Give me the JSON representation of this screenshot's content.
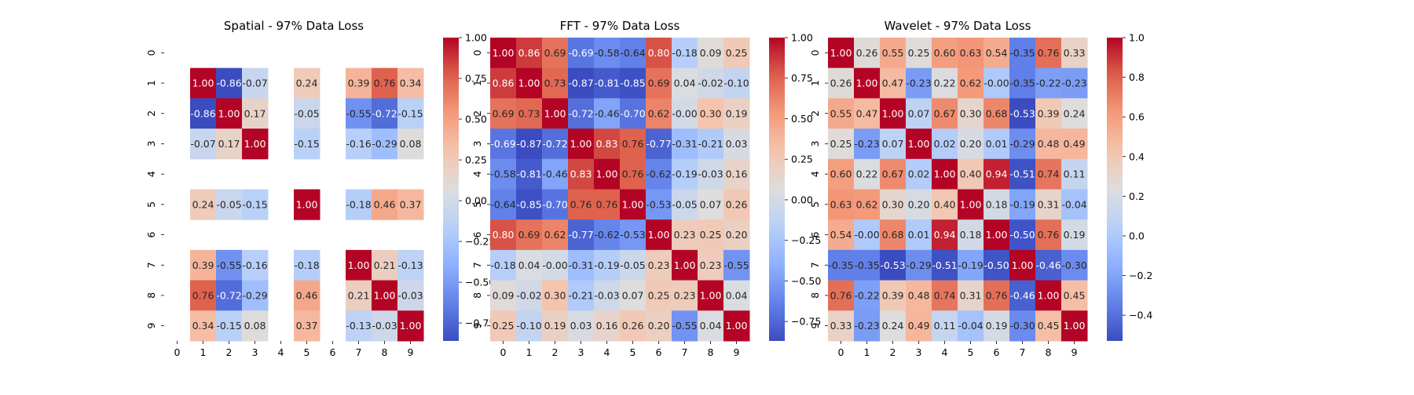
{
  "chart_data": [
    {
      "type": "heatmap",
      "title": "Spatial - 97% Data Loss",
      "x_categories": [
        "0",
        "1",
        "2",
        "3",
        "4",
        "5",
        "6",
        "7",
        "8",
        "9"
      ],
      "y_categories": [
        "0",
        "1",
        "2",
        "3",
        "4",
        "5",
        "6",
        "7",
        "8",
        "9"
      ],
      "values": [
        [
          null,
          null,
          null,
          null,
          null,
          null,
          null,
          null,
          null,
          null
        ],
        [
          null,
          1.0,
          -0.86,
          -0.07,
          null,
          0.24,
          null,
          0.39,
          0.76,
          0.34
        ],
        [
          null,
          -0.86,
          1.0,
          0.17,
          null,
          -0.05,
          null,
          -0.55,
          -0.72,
          -0.15
        ],
        [
          null,
          -0.07,
          0.17,
          1.0,
          null,
          -0.15,
          null,
          -0.16,
          -0.29,
          0.08
        ],
        [
          null,
          null,
          null,
          null,
          null,
          null,
          null,
          null,
          null,
          null
        ],
        [
          null,
          0.24,
          -0.05,
          -0.15,
          null,
          1.0,
          null,
          -0.18,
          0.46,
          0.37
        ],
        [
          null,
          null,
          null,
          null,
          null,
          null,
          null,
          null,
          null,
          null
        ],
        [
          null,
          0.39,
          -0.55,
          -0.16,
          null,
          -0.18,
          null,
          1.0,
          0.21,
          -0.13
        ],
        [
          null,
          0.76,
          -0.72,
          -0.29,
          null,
          0.46,
          null,
          0.21,
          1.0,
          -0.03
        ],
        [
          null,
          0.34,
          -0.15,
          0.08,
          null,
          0.37,
          null,
          -0.13,
          -0.03,
          1.0
        ]
      ],
      "vmin": -0.86,
      "vmax": 1.0,
      "colorbar_ticks": [
        -0.75,
        -0.5,
        -0.25,
        0.0,
        0.25,
        0.5,
        0.75,
        1.0
      ],
      "colorbar_tick_labels": [
        "−0.75",
        "−0.50",
        "−0.25",
        "0.00",
        "0.25",
        "0.50",
        "0.75",
        "1.00"
      ],
      "colormap": "coolwarm"
    },
    {
      "type": "heatmap",
      "title": "FFT - 97% Data Loss",
      "x_categories": [
        "0",
        "1",
        "2",
        "3",
        "4",
        "5",
        "6",
        "7",
        "8",
        "9"
      ],
      "y_categories": [
        "0",
        "1",
        "2",
        "3",
        "4",
        "5",
        "6",
        "7",
        "8",
        "9"
      ],
      "values": [
        [
          1.0,
          0.86,
          0.69,
          -0.69,
          -0.58,
          -0.64,
          0.8,
          -0.18,
          0.09,
          0.25
        ],
        [
          0.86,
          1.0,
          0.73,
          -0.87,
          -0.81,
          -0.85,
          0.69,
          0.04,
          -0.02,
          -0.1
        ],
        [
          0.69,
          0.73,
          1.0,
          -0.72,
          -0.46,
          -0.7,
          0.62,
          -0.0,
          0.3,
          0.19
        ],
        [
          -0.69,
          -0.87,
          -0.72,
          1.0,
          0.83,
          0.76,
          -0.77,
          -0.31,
          -0.21,
          0.03
        ],
        [
          -0.58,
          -0.81,
          -0.46,
          0.83,
          1.0,
          0.76,
          -0.62,
          -0.19,
          -0.03,
          0.16
        ],
        [
          -0.64,
          -0.85,
          -0.7,
          0.76,
          0.76,
          1.0,
          -0.53,
          -0.05,
          0.07,
          0.26
        ],
        [
          0.8,
          0.69,
          0.62,
          -0.77,
          -0.62,
          -0.53,
          1.0,
          0.23,
          0.25,
          0.2
        ],
        [
          -0.18,
          0.04,
          -0.0,
          -0.31,
          -0.19,
          -0.05,
          0.23,
          1.0,
          0.23,
          -0.55
        ],
        [
          0.09,
          -0.02,
          0.3,
          -0.21,
          -0.03,
          0.07,
          0.25,
          0.23,
          1.0,
          0.04
        ],
        [
          0.25,
          -0.1,
          0.19,
          0.03,
          0.16,
          0.26,
          0.2,
          -0.55,
          0.04,
          1.0
        ]
      ],
      "vmin": -0.87,
      "vmax": 1.0,
      "colorbar_ticks": [
        -0.75,
        -0.5,
        -0.25,
        0.0,
        0.25,
        0.5,
        0.75,
        1.0
      ],
      "colorbar_tick_labels": [
        "−0.75",
        "−0.50",
        "−0.25",
        "0.00",
        "0.25",
        "0.50",
        "0.75",
        "1.00"
      ],
      "colormap": "coolwarm"
    },
    {
      "type": "heatmap",
      "title": "Wavelet - 97% Data Loss",
      "x_categories": [
        "0",
        "1",
        "2",
        "3",
        "4",
        "5",
        "6",
        "7",
        "8",
        "9"
      ],
      "y_categories": [
        "0",
        "1",
        "2",
        "3",
        "4",
        "5",
        "6",
        "7",
        "8",
        "9"
      ],
      "values": [
        [
          1.0,
          0.26,
          0.55,
          0.25,
          0.6,
          0.63,
          0.54,
          -0.35,
          0.76,
          0.33
        ],
        [
          0.26,
          1.0,
          0.47,
          -0.23,
          0.22,
          0.62,
          -0.0,
          -0.35,
          -0.22,
          -0.23
        ],
        [
          0.55,
          0.47,
          1.0,
          0.07,
          0.67,
          0.3,
          0.68,
          -0.53,
          0.39,
          0.24
        ],
        [
          0.25,
          -0.23,
          0.07,
          1.0,
          0.02,
          0.2,
          0.01,
          -0.29,
          0.48,
          0.49
        ],
        [
          0.6,
          0.22,
          0.67,
          0.02,
          1.0,
          0.4,
          0.94,
          -0.51,
          0.74,
          0.11
        ],
        [
          0.63,
          0.62,
          0.3,
          0.2,
          0.4,
          1.0,
          0.18,
          -0.19,
          0.31,
          -0.04
        ],
        [
          0.54,
          -0.0,
          0.68,
          0.01,
          0.94,
          0.18,
          1.0,
          -0.5,
          0.76,
          0.19
        ],
        [
          -0.35,
          -0.35,
          -0.53,
          -0.29,
          -0.51,
          -0.19,
          -0.5,
          1.0,
          -0.46,
          -0.3
        ],
        [
          0.76,
          -0.22,
          0.39,
          0.48,
          0.74,
          0.31,
          0.76,
          -0.46,
          1.0,
          0.45
        ],
        [
          0.33,
          -0.23,
          0.24,
          0.49,
          0.11,
          -0.04,
          0.19,
          -0.3,
          0.45,
          1.0
        ]
      ],
      "vmin": -0.53,
      "vmax": 1.0,
      "colorbar_ticks": [
        -0.4,
        -0.2,
        0.0,
        0.2,
        0.4,
        0.6,
        0.8,
        1.0
      ],
      "colorbar_tick_labels": [
        "−0.4",
        "−0.2",
        "0.0",
        "0.2",
        "0.4",
        "0.6",
        "0.8",
        "1.0"
      ],
      "colormap": "coolwarm"
    }
  ]
}
